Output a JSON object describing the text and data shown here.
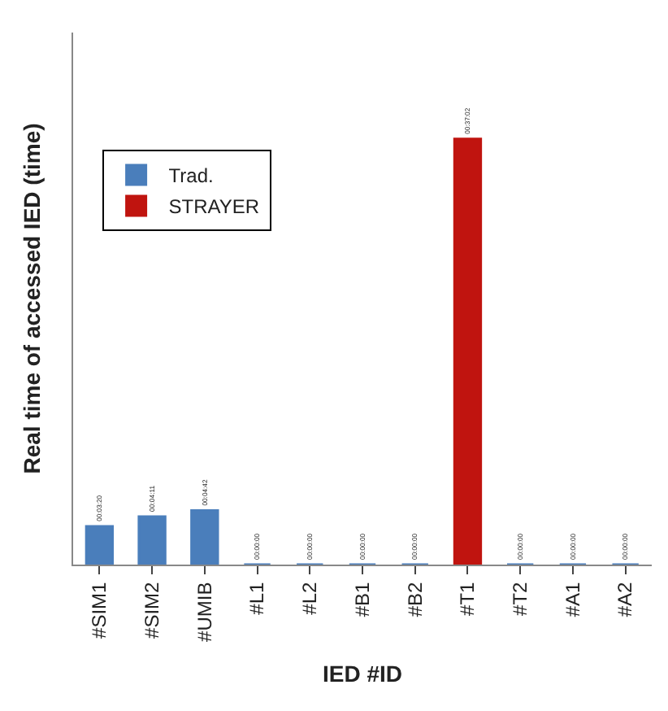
{
  "chart_data": {
    "type": "bar",
    "xlabel": "IED #ID",
    "ylabel": "Real time of accessed IED (time)",
    "categories": [
      "#SIM1",
      "#SIM2",
      "#UMIB",
      "#L1",
      "#L2",
      "#B1",
      "#B2",
      "#T1",
      "#T2",
      "#A1",
      "#A2"
    ],
    "series": [
      {
        "name": "Trad.",
        "color": "#4a7ebb",
        "values": [
          200,
          251,
          282,
          0,
          0,
          0,
          0,
          null,
          0,
          0,
          0
        ],
        "value_labels": [
          "00:03:20",
          "00:04:11",
          "00:04:42",
          "00:00:00",
          "00:00:00",
          "00:00:00",
          "00:00:00",
          null,
          "00:00:00",
          "00:00:00",
          "00:00:00"
        ]
      },
      {
        "name": "STRAYER",
        "color": "#c0140f",
        "values": [
          null,
          null,
          null,
          null,
          null,
          null,
          null,
          2222,
          null,
          null,
          null
        ],
        "value_labels": [
          null,
          null,
          null,
          null,
          null,
          null,
          null,
          "00:37:02",
          null,
          null,
          null
        ]
      }
    ],
    "legend": "top left"
  }
}
